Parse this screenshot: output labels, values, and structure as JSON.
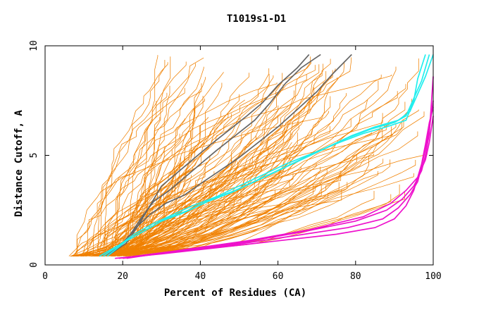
{
  "chart_data": {
    "type": "line",
    "title": "T1019s1-D1",
    "xlabel": "Percent of Residues (CA)",
    "ylabel": "Distance Cutoff, A",
    "xlim": [
      0,
      100
    ],
    "ylim": [
      0,
      10
    ],
    "xticks": [
      0,
      20,
      40,
      60,
      80,
      100
    ],
    "yticks": [
      0,
      5,
      10
    ],
    "grid": false,
    "legend": "none",
    "background_series_count": 150,
    "colors": {
      "background": "#f08000",
      "gray": "#666666",
      "cyan": "#22eeee",
      "magenta": "#ee11cc"
    },
    "series": [
      {
        "color": "gray",
        "points": [
          [
            14,
            0.4
          ],
          [
            20,
            1
          ],
          [
            24,
            1.8
          ],
          [
            26,
            2.4
          ],
          [
            28,
            3
          ],
          [
            30,
            3.6
          ],
          [
            34,
            4.2
          ],
          [
            38,
            4.8
          ],
          [
            42,
            5.4
          ],
          [
            47,
            6.1
          ],
          [
            52,
            6.8
          ],
          [
            56,
            7.4
          ],
          [
            60,
            8.2
          ],
          [
            65,
            9
          ],
          [
            68,
            9.6
          ]
        ]
      },
      {
        "color": "gray",
        "points": [
          [
            15,
            0.4
          ],
          [
            19,
            0.8
          ],
          [
            22,
            1.4
          ],
          [
            25,
            2.2
          ],
          [
            28,
            2.9
          ],
          [
            32,
            3.4
          ],
          [
            36,
            4
          ],
          [
            40,
            4.6
          ],
          [
            44,
            5.2
          ],
          [
            49,
            5.9
          ],
          [
            54,
            6.6
          ],
          [
            58,
            7.4
          ],
          [
            62,
            8.3
          ],
          [
            66,
            9
          ],
          [
            71,
            9.6
          ]
        ]
      },
      {
        "color": "gray",
        "points": [
          [
            16,
            0.4
          ],
          [
            21,
            1
          ],
          [
            24,
            1.8
          ],
          [
            27,
            2.3
          ],
          [
            31,
            2.8
          ],
          [
            36,
            3.2
          ],
          [
            40,
            3.7
          ],
          [
            45,
            4.3
          ],
          [
            50,
            4.9
          ],
          [
            55,
            5.6
          ],
          [
            60,
            6.3
          ],
          [
            65,
            7.1
          ],
          [
            70,
            7.9
          ],
          [
            74,
            8.7
          ],
          [
            79,
            9.6
          ]
        ]
      },
      {
        "color": "cyan",
        "points": [
          [
            14,
            0.4
          ],
          [
            19,
            0.9
          ],
          [
            23,
            1.4
          ],
          [
            28,
            1.9
          ],
          [
            33,
            2.3
          ],
          [
            38,
            2.7
          ],
          [
            44,
            3.1
          ],
          [
            50,
            3.6
          ],
          [
            56,
            4.1
          ],
          [
            62,
            4.6
          ],
          [
            69,
            5.1
          ],
          [
            76,
            5.6
          ],
          [
            82,
            6
          ],
          [
            88,
            6.3
          ],
          [
            93,
            6.6
          ],
          [
            95,
            7.5
          ],
          [
            96,
            8.5
          ],
          [
            98,
            9.6
          ]
        ]
      },
      {
        "color": "cyan",
        "points": [
          [
            15,
            0.4
          ],
          [
            20,
            1
          ],
          [
            25,
            1.5
          ],
          [
            30,
            2
          ],
          [
            36,
            2.4
          ],
          [
            42,
            2.9
          ],
          [
            48,
            3.3
          ],
          [
            54,
            3.8
          ],
          [
            60,
            4.3
          ],
          [
            66,
            4.8
          ],
          [
            72,
            5.3
          ],
          [
            78,
            5.8
          ],
          [
            84,
            6.2
          ],
          [
            90,
            6.5
          ],
          [
            93,
            6.8
          ],
          [
            95,
            7.6
          ],
          [
            97,
            8.4
          ],
          [
            99,
            9.6
          ]
        ]
      },
      {
        "color": "cyan",
        "points": [
          [
            16,
            0.4
          ],
          [
            21,
            1.1
          ],
          [
            26,
            1.6
          ],
          [
            31,
            2.1
          ],
          [
            37,
            2.5
          ],
          [
            43,
            3
          ],
          [
            49,
            3.4
          ],
          [
            55,
            3.9
          ],
          [
            61,
            4.4
          ],
          [
            67,
            4.9
          ],
          [
            73,
            5.4
          ],
          [
            79,
            5.9
          ],
          [
            85,
            6.3
          ],
          [
            91,
            6.6
          ],
          [
            94,
            7
          ],
          [
            96,
            7.8
          ],
          [
            98,
            8.6
          ],
          [
            100,
            9.6
          ]
        ]
      },
      {
        "color": "magenta",
        "points": [
          [
            18,
            0.3
          ],
          [
            30,
            0.5
          ],
          [
            45,
            0.8
          ],
          [
            60,
            1.1
          ],
          [
            75,
            1.4
          ],
          [
            85,
            1.7
          ],
          [
            90,
            2.1
          ],
          [
            93,
            2.7
          ],
          [
            95,
            3.4
          ],
          [
            96,
            4
          ],
          [
            97,
            4.6
          ],
          [
            98,
            5.5
          ],
          [
            99,
            6.5
          ],
          [
            100,
            7.2
          ]
        ]
      },
      {
        "color": "magenta",
        "points": [
          [
            19,
            0.3
          ],
          [
            32,
            0.6
          ],
          [
            48,
            0.9
          ],
          [
            63,
            1.3
          ],
          [
            78,
            1.7
          ],
          [
            87,
            2.1
          ],
          [
            91,
            2.6
          ],
          [
            94,
            3.2
          ],
          [
            96,
            3.8
          ],
          [
            97,
            4.5
          ],
          [
            98,
            5.3
          ],
          [
            99,
            6.2
          ],
          [
            100,
            7.5
          ]
        ]
      },
      {
        "color": "magenta",
        "points": [
          [
            20,
            0.3
          ],
          [
            34,
            0.6
          ],
          [
            50,
            1
          ],
          [
            66,
            1.5
          ],
          [
            80,
            2
          ],
          [
            88,
            2.5
          ],
          [
            92,
            3
          ],
          [
            95,
            3.6
          ],
          [
            97,
            4.3
          ],
          [
            98,
            5
          ],
          [
            99,
            6
          ],
          [
            100,
            8.6
          ]
        ]
      },
      {
        "color": "magenta",
        "points": [
          [
            21,
            0.3
          ],
          [
            36,
            0.7
          ],
          [
            52,
            1.1
          ],
          [
            68,
            1.6
          ],
          [
            82,
            2.2
          ],
          [
            89,
            2.8
          ],
          [
            93,
            3.4
          ],
          [
            96,
            4
          ],
          [
            98,
            4.8
          ],
          [
            99,
            5.6
          ],
          [
            100,
            6.8
          ]
        ]
      }
    ]
  }
}
